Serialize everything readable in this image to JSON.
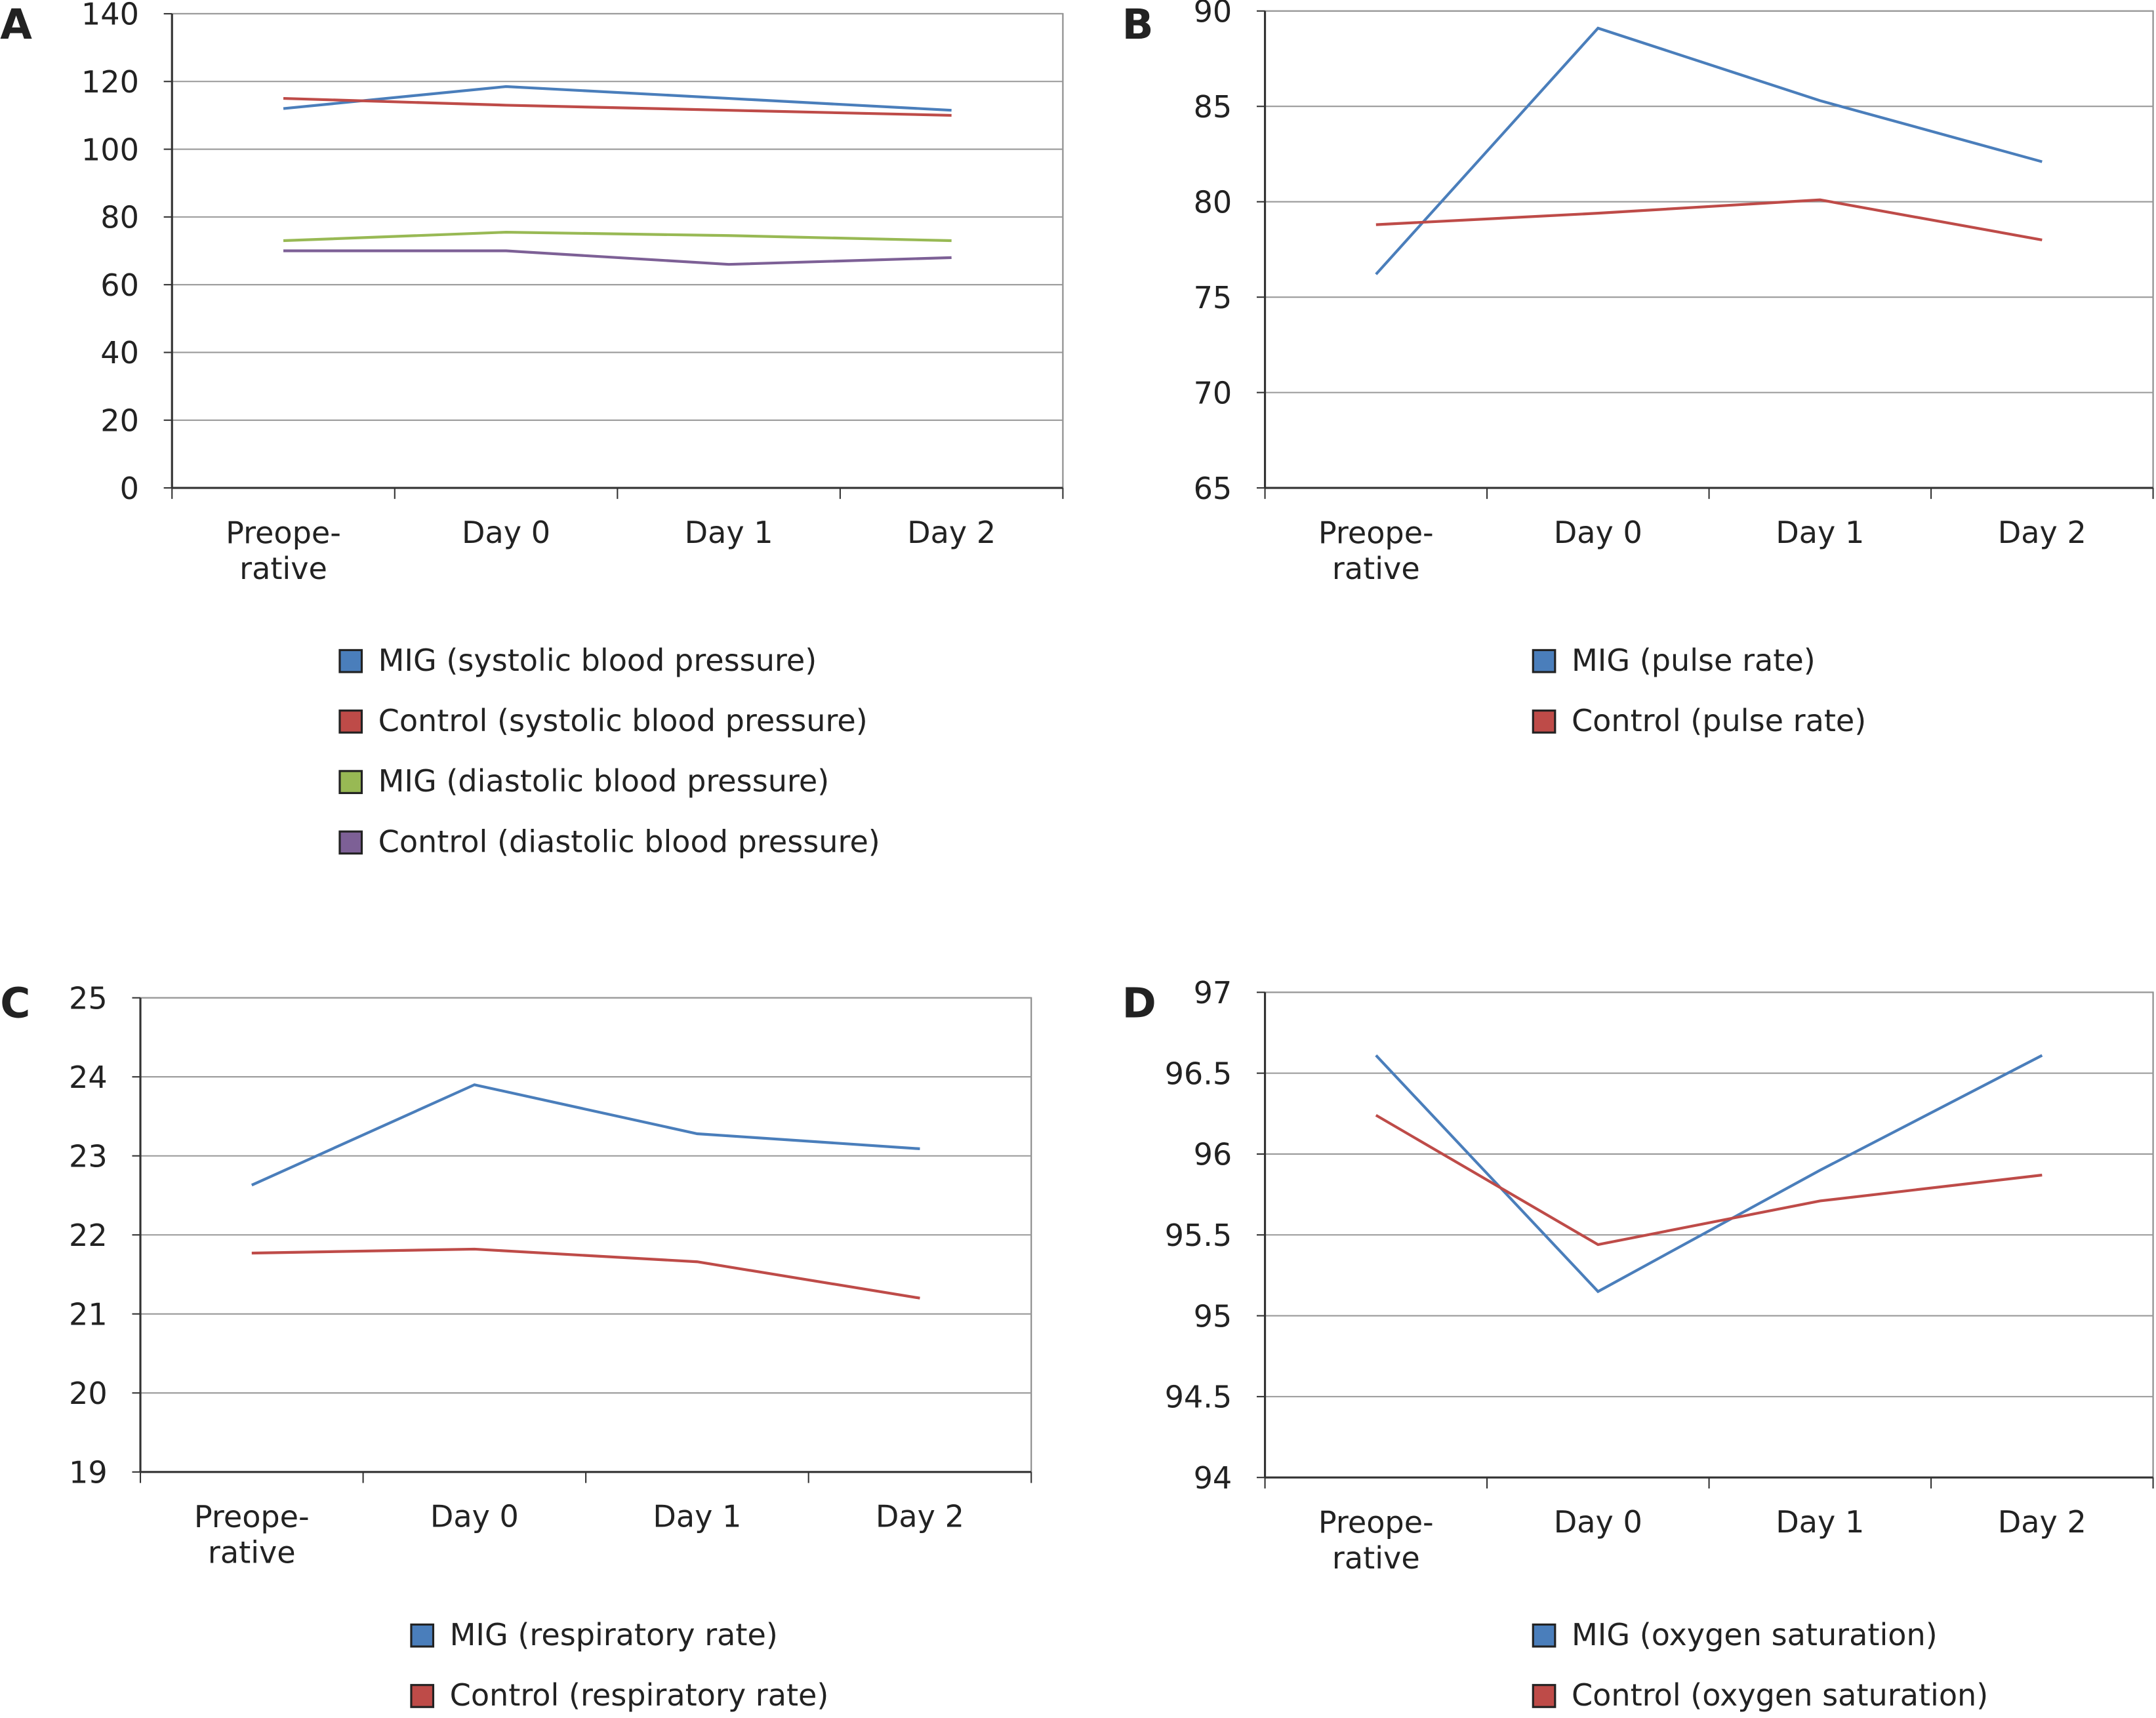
{
  "chart_data": [
    {
      "type": "line",
      "label": "A",
      "categories": [
        "Preope-\nrative",
        "Day 0",
        "Day 1",
        "Day 2"
      ],
      "ylim": [
        0,
        140
      ],
      "yticks": [
        0,
        20,
        40,
        60,
        80,
        100,
        120,
        140
      ],
      "grid": true,
      "series": [
        {
          "name": "MIG (systolic blood pressure)",
          "color": "#4a7ebb",
          "values": [
            112,
            118.5,
            115,
            111.5
          ]
        },
        {
          "name": "Control (systolic blood pressure)",
          "color": "#be4b48",
          "values": [
            115,
            113,
            111.5,
            110
          ]
        },
        {
          "name": "MIG (diastolic blood pressure)",
          "color": "#98b954",
          "values": [
            73,
            75.5,
            74.5,
            73
          ]
        },
        {
          "name": "Control (diastolic blood pressure)",
          "color": "#7d6096",
          "values": [
            70,
            70,
            66,
            68
          ]
        }
      ]
    },
    {
      "type": "line",
      "label": "B",
      "categories": [
        "Preope-\nrative",
        "Day 0",
        "Day 1",
        "Day 2"
      ],
      "ylim": [
        65,
        90
      ],
      "yticks": [
        65,
        70,
        75,
        80,
        85,
        90
      ],
      "grid": true,
      "series": [
        {
          "name": "MIG (pulse rate)",
          "color": "#4a7ebb",
          "values": [
            76.2,
            89.1,
            85.3,
            82.1
          ]
        },
        {
          "name": "Control (pulse rate)",
          "color": "#be4b48",
          "values": [
            78.8,
            79.4,
            80.1,
            78.0
          ]
        }
      ]
    },
    {
      "type": "line",
      "label": "C",
      "categories": [
        "Preope-\nrative",
        "Day 0",
        "Day 1",
        "Day 2"
      ],
      "ylim": [
        19,
        25
      ],
      "yticks": [
        19,
        20,
        21,
        22,
        23,
        24,
        25
      ],
      "grid": true,
      "series": [
        {
          "name": "MIG (respiratory rate)",
          "color": "#4a7ebb",
          "values": [
            22.63,
            23.9,
            23.28,
            23.09
          ]
        },
        {
          "name": "Control (respiratory rate)",
          "color": "#be4b48",
          "values": [
            21.77,
            21.82,
            21.66,
            21.2
          ]
        }
      ]
    },
    {
      "type": "line",
      "label": "D",
      "categories": [
        "Preope-\nrative",
        "Day 0",
        "Day 1",
        "Day 2"
      ],
      "ylim": [
        94,
        97
      ],
      "yticks": [
        94,
        94.5,
        95,
        95.5,
        96,
        96.5,
        97
      ],
      "grid": true,
      "series": [
        {
          "name": "MIG (oxygen saturation)",
          "color": "#4a7ebb",
          "values": [
            96.61,
            95.15,
            95.9,
            96.61
          ]
        },
        {
          "name": "Control (oxygen saturation)",
          "color": "#be4b48",
          "values": [
            96.24,
            95.44,
            95.71,
            95.87
          ]
        }
      ]
    }
  ]
}
